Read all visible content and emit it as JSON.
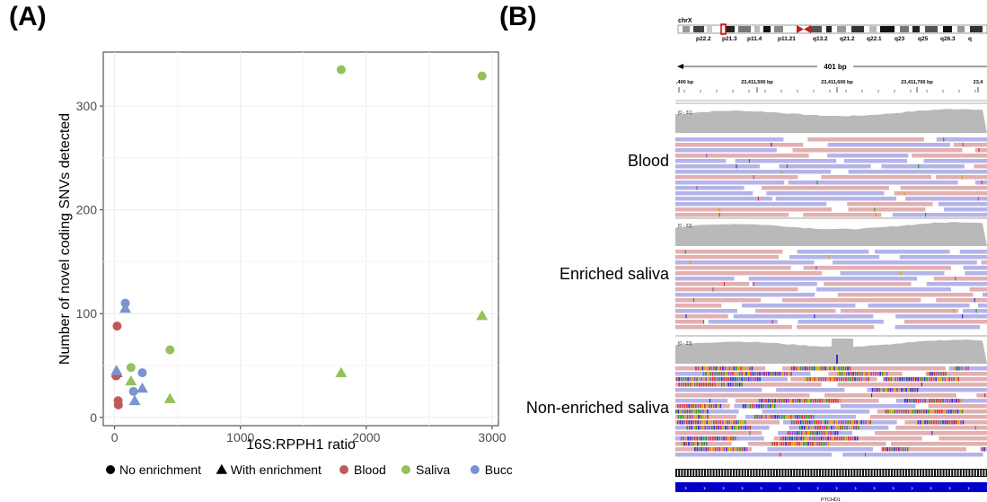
{
  "panels": {
    "a_label": "(A)",
    "b_label": "(B)"
  },
  "chart_data": {
    "type": "scatter",
    "xlabel": "16S:RPPH1 ratio",
    "ylabel": "Number of novel coding SNVs detected",
    "xlim": [
      -90,
      3050
    ],
    "ylim": [
      -8,
      352
    ],
    "xticks": [
      0,
      1000,
      2000,
      3000
    ],
    "yticks": [
      0,
      100,
      200,
      300
    ],
    "grid": true,
    "legend_position": "bottom",
    "shape_legend": [
      {
        "label": "No enrichment",
        "shape": "circle"
      },
      {
        "label": "With enrichment",
        "shape": "triangle"
      }
    ],
    "color_legend": [
      {
        "label": "Blood",
        "color": "#c05a5a"
      },
      {
        "label": "Saliva",
        "color": "#94c15b"
      },
      {
        "label": "Buccal",
        "color": "#7b93cf"
      }
    ],
    "series": [
      {
        "name": "Blood",
        "color": "#c05a5a",
        "points": [
          {
            "x": 20,
            "y": 88,
            "shape": "circle"
          },
          {
            "x": 12,
            "y": 40,
            "shape": "circle"
          },
          {
            "x": 28,
            "y": 16,
            "shape": "circle"
          },
          {
            "x": 30,
            "y": 12,
            "shape": "circle"
          },
          {
            "x": 18,
            "y": 43,
            "shape": "triangle"
          }
        ]
      },
      {
        "name": "Saliva",
        "color": "#94c15b",
        "points": [
          {
            "x": 1800,
            "y": 335,
            "shape": "circle"
          },
          {
            "x": 2920,
            "y": 329,
            "shape": "circle"
          },
          {
            "x": 440,
            "y": 65,
            "shape": "circle"
          },
          {
            "x": 130,
            "y": 48,
            "shape": "circle"
          },
          {
            "x": 2920,
            "y": 98,
            "shape": "triangle"
          },
          {
            "x": 1800,
            "y": 43,
            "shape": "triangle"
          },
          {
            "x": 440,
            "y": 18,
            "shape": "triangle"
          },
          {
            "x": 130,
            "y": 35,
            "shape": "triangle"
          }
        ]
      },
      {
        "name": "Buccal",
        "color": "#7b93cf",
        "points": [
          {
            "x": 85,
            "y": 110,
            "shape": "circle"
          },
          {
            "x": 220,
            "y": 43,
            "shape": "circle"
          },
          {
            "x": 150,
            "y": 25,
            "shape": "circle"
          },
          {
            "x": 85,
            "y": 105,
            "shape": "triangle"
          },
          {
            "x": 15,
            "y": 45,
            "shape": "triangle"
          },
          {
            "x": 220,
            "y": 28,
            "shape": "triangle"
          },
          {
            "x": 160,
            "y": 16,
            "shape": "triangle"
          }
        ]
      }
    ]
  },
  "genome_browser": {
    "chromosome": "chrX",
    "bands": [
      "p22.2",
      "p21.3",
      "p11.4",
      "p11.21",
      "q13.2",
      "q21.2",
      "q22.1",
      "q23",
      "q25",
      "q26.3",
      "q"
    ],
    "span_label": "401 bp",
    "coordinates": [
      ",400 bp",
      "23,411,500 bp",
      "23,411,600 bp",
      "23,411,700 bp",
      "23,4"
    ],
    "tracks": [
      {
        "label": "Blood",
        "range": "[0 - 31]"
      },
      {
        "label": "Enriched saliva",
        "range": "[0 - 33]"
      },
      {
        "label": "Non-enriched saliva",
        "range": "[0 - 33]"
      }
    ],
    "gene": "PTCHD1",
    "colors": {
      "read_pink": "#e2b0b0",
      "read_blue": "#b4b4ea",
      "coverage_gray": "#b9b9b9",
      "gene_blue": "#0000c8"
    }
  }
}
